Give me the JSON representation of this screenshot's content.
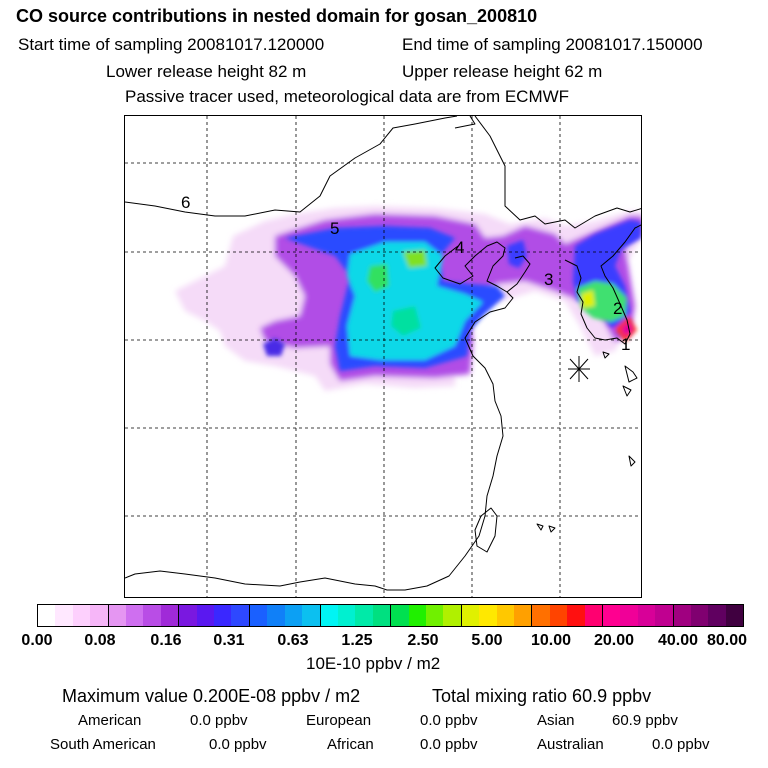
{
  "header": {
    "title": "CO  source contributions in nested domain for gosan_200810",
    "start_time": "Start time of sampling 20081017.120000",
    "end_time": "End time of sampling 20081017.150000",
    "lower_release": "Lower release height   82 m",
    "upper_release": "Upper release height   62 m",
    "tracer_note": "Passive tracer used, meteorological data are from ECMWF"
  },
  "map": {
    "region_labels": [
      "1",
      "2",
      "3",
      "4",
      "5",
      "6"
    ],
    "receptor_marker": "star-icon"
  },
  "colorbar": {
    "colors": [
      "#ffffff",
      "#ffe8ff",
      "#fdd0fd",
      "#f6b6f8",
      "#e596f2",
      "#cf6ff0",
      "#b94de6",
      "#a02ad8",
      "#7a18e0",
      "#5a18f0",
      "#3a28ff",
      "#2e48ff",
      "#1a60ff",
      "#1080f8",
      "#0ca0f4",
      "#0cc0f0",
      "#00f4f4",
      "#00f0d0",
      "#00eaa8",
      "#00e080",
      "#00e050",
      "#20f000",
      "#70f000",
      "#b0f000",
      "#e0f000",
      "#ffe800",
      "#ffc800",
      "#ffa000",
      "#ff7000",
      "#ff4400",
      "#ff1010",
      "#ff0070",
      "#ff0090",
      "#f00098",
      "#d80098",
      "#c00090",
      "#a00080",
      "#800070",
      "#600060",
      "#400040"
    ],
    "tick_labels": [
      "0.00",
      "0.08",
      "0.16",
      "0.31",
      "0.63",
      "1.25",
      "2.50",
      "5.00",
      "10.00",
      "20.00",
      "40.00",
      "80.00"
    ],
    "unit": "10E-10 ppbv / m2"
  },
  "stats": {
    "max_value": "Maximum value  0.200E-08 ppbv / m2",
    "total_mixing": "Total mixing ratio       60.9 ppbv",
    "american_label": "American",
    "american_value": "0.0 ppbv",
    "european_label": "European",
    "european_value": "0.0 ppbv",
    "asian_label": "Asian",
    "asian_value": "60.9 ppbv",
    "south_american_label": "South American",
    "south_american_value": "0.0 ppbv",
    "african_label": "African",
    "african_value": "0.0 ppbv",
    "australian_label": "Australian",
    "australian_value": "0.0 ppbv"
  }
}
